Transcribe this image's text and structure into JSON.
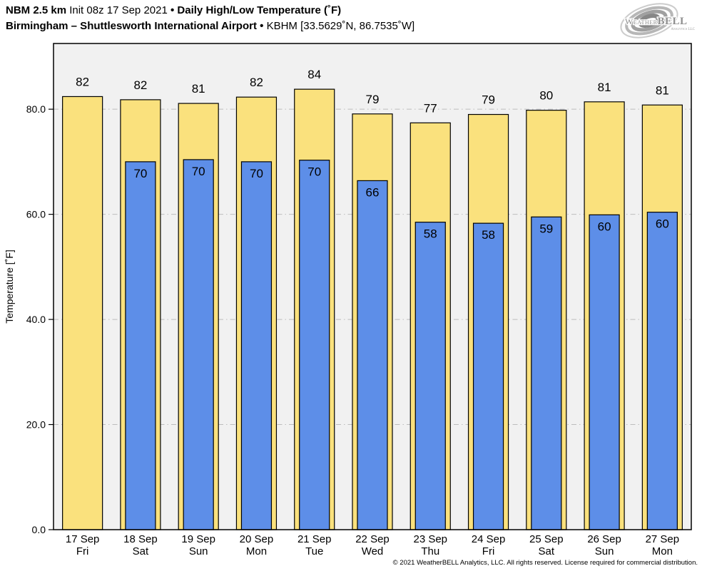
{
  "header": {
    "model": "NBM 2.5 km",
    "init": "Init 08z 17 Sep 2021",
    "dot": "•",
    "product": "Daily High/Low Temperature (˚F)",
    "station_name": "Birmingham – Shuttlesworth International Airport",
    "station_id": "KBHM [33.5629˚N, 86.7535˚W]"
  },
  "logo": {
    "brand_weather": "Weather",
    "brand_bell": "BELL",
    "sub": "Analytics LLC",
    "swirl_icon": "hurricane-swirl-icon"
  },
  "chart_data": {
    "type": "bar",
    "title": "NBM 2.5 km Init 08z 17 Sep 2021 • Daily High/Low Temperature (˚F)",
    "subtitle": "Birmingham – Shuttlesworth International Airport • KBHM [33.5629˚N, 86.7535˚W]",
    "xlabel": "",
    "ylabel": "Temperature [˚F]",
    "ylim": [
      0,
      92.5
    ],
    "yticks": [
      0,
      20,
      40,
      60,
      80
    ],
    "ytick_labels": [
      "0.0",
      "20.0",
      "40.0",
      "60.0",
      "80.0"
    ],
    "grid": {
      "horizontal": true,
      "style": "dash-dot",
      "color": "#bdbdbd"
    },
    "plot_bg": "#f1f1f1",
    "frame_color": "#000000",
    "legend": "none",
    "categories": [
      {
        "date": "17 Sep",
        "day": "Fri"
      },
      {
        "date": "18 Sep",
        "day": "Sat"
      },
      {
        "date": "19 Sep",
        "day": "Sun"
      },
      {
        "date": "20 Sep",
        "day": "Mon"
      },
      {
        "date": "21 Sep",
        "day": "Tue"
      },
      {
        "date": "22 Sep",
        "day": "Wed"
      },
      {
        "date": "23 Sep",
        "day": "Thu"
      },
      {
        "date": "24 Sep",
        "day": "Fri"
      },
      {
        "date": "25 Sep",
        "day": "Sat"
      },
      {
        "date": "26 Sep",
        "day": "Sun"
      },
      {
        "date": "27 Sep",
        "day": "Mon"
      }
    ],
    "series": [
      {
        "name": "Daily High",
        "color": "#FAE17D",
        "values": [
          82.4,
          81.8,
          81.1,
          82.3,
          83.8,
          79.1,
          77.4,
          79.0,
          79.8,
          81.4,
          80.8
        ],
        "labels": [
          "82",
          "82",
          "81",
          "82",
          "84",
          "79",
          "77",
          "79",
          "80",
          "81",
          "81"
        ]
      },
      {
        "name": "Daily Low",
        "color": "#5D8EE8",
        "values": [
          null,
          70.0,
          70.4,
          70.0,
          70.3,
          66.4,
          58.5,
          58.3,
          59.5,
          59.9,
          60.4
        ],
        "labels": [
          null,
          "70",
          "70",
          "70",
          "70",
          "66",
          "58",
          "58",
          "59",
          "60",
          "60"
        ]
      }
    ]
  },
  "footer": {
    "copyright": "© 2021 WeatherBELL Analytics, LLC. All rights reserved. License required for commercial distribution."
  }
}
